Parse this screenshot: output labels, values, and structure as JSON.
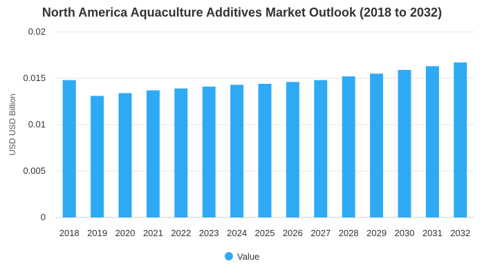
{
  "chart_data": {
    "type": "bar",
    "title": "North America Aquaculture Additives Market Outlook (2018 to 2032)",
    "xlabel": "",
    "ylabel": "USD USD Billion",
    "categories": [
      "2018",
      "2019",
      "2020",
      "2021",
      "2022",
      "2023",
      "2024",
      "2025",
      "2026",
      "2027",
      "2028",
      "2029",
      "2030",
      "2031",
      "2032"
    ],
    "series": [
      {
        "name": "Value",
        "color": "#2eaaf5",
        "values": [
          0.0148,
          0.0131,
          0.0134,
          0.0137,
          0.0139,
          0.0141,
          0.0143,
          0.0144,
          0.0146,
          0.0148,
          0.0152,
          0.0155,
          0.0159,
          0.0163,
          0.0167
        ]
      }
    ],
    "ylim": [
      0,
      0.02
    ],
    "yticks": [
      "0",
      "0.005",
      "0.01",
      "0.015",
      "0.02"
    ],
    "grid": true,
    "legend": "bottom-center"
  }
}
